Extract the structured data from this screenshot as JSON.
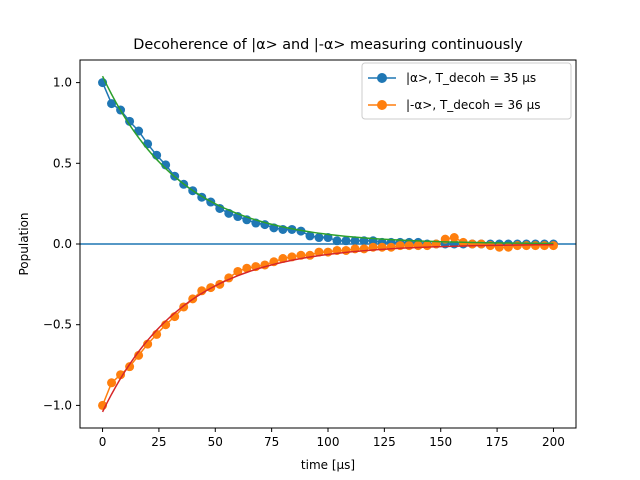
{
  "chart_data": {
    "type": "line",
    "title": "Decoherence of |α> and |-α> measuring continuously",
    "xlabel": "time [μs]",
    "ylabel": "Population",
    "xlim": [
      -10,
      210
    ],
    "ylim": [
      -1.14,
      1.14
    ],
    "xticks": [
      0,
      25,
      50,
      75,
      100,
      125,
      150,
      175,
      200
    ],
    "xtick_labels": [
      "0",
      "25",
      "50",
      "75",
      "100",
      "125",
      "150",
      "175",
      "200"
    ],
    "yticks": [
      -1.0,
      -0.5,
      0.0,
      0.5,
      1.0
    ],
    "ytick_labels": [
      "−1.0",
      "−0.5",
      "0.0",
      "0.5",
      "1.0"
    ],
    "grid": false,
    "legend_position": "top-right",
    "x": [
      0,
      4,
      8,
      12,
      16,
      20,
      24,
      28,
      32,
      36,
      40,
      44,
      48,
      52,
      56,
      60,
      64,
      68,
      72,
      76,
      80,
      84,
      88,
      92,
      96,
      100,
      104,
      108,
      112,
      116,
      120,
      124,
      128,
      132,
      136,
      140,
      144,
      148,
      152,
      156,
      160,
      164,
      168,
      172,
      176,
      180,
      184,
      188,
      192,
      196,
      200
    ],
    "series": [
      {
        "name": "|α>, T_decoh = 35 μs",
        "color": "#1f77b4",
        "marker": "circle",
        "values": [
          1.0,
          0.87,
          0.83,
          0.76,
          0.7,
          0.62,
          0.55,
          0.49,
          0.42,
          0.37,
          0.33,
          0.29,
          0.26,
          0.22,
          0.19,
          0.17,
          0.15,
          0.13,
          0.12,
          0.1,
          0.09,
          0.09,
          0.08,
          0.05,
          0.04,
          0.04,
          0.02,
          0.02,
          0.02,
          0.02,
          0.02,
          0.01,
          0.01,
          0.01,
          0.01,
          0.01,
          0.0,
          0.0,
          0.0,
          0.0,
          0.0,
          0.0,
          0.0,
          0.0,
          0.0,
          0.0,
          0.0,
          0.0,
          0.0,
          0.0,
          0.0
        ]
      },
      {
        "name": "|-α>, T_decoh = 36 μs",
        "color": "#ff7f0e",
        "marker": "circle",
        "values": [
          -1.0,
          -0.86,
          -0.81,
          -0.76,
          -0.69,
          -0.62,
          -0.56,
          -0.5,
          -0.45,
          -0.39,
          -0.34,
          -0.29,
          -0.27,
          -0.25,
          -0.21,
          -0.17,
          -0.15,
          -0.14,
          -0.13,
          -0.11,
          -0.09,
          -0.08,
          -0.07,
          -0.07,
          -0.05,
          -0.05,
          -0.04,
          -0.04,
          -0.03,
          -0.03,
          -0.02,
          -0.02,
          -0.02,
          -0.01,
          -0.01,
          -0.01,
          -0.01,
          0.0,
          0.03,
          0.04,
          0.01,
          0.0,
          0.0,
          -0.01,
          -0.02,
          -0.02,
          -0.01,
          -0.01,
          -0.01,
          -0.01,
          -0.01
        ]
      }
    ],
    "fits": [
      {
        "color": "#2ca02c",
        "amplitude": 1.04,
        "tau": 35
      },
      {
        "color": "#d62728",
        "amplitude": -1.04,
        "tau": 36
      }
    ],
    "hline": {
      "y": 0.0,
      "color": "#1f77b4"
    }
  }
}
